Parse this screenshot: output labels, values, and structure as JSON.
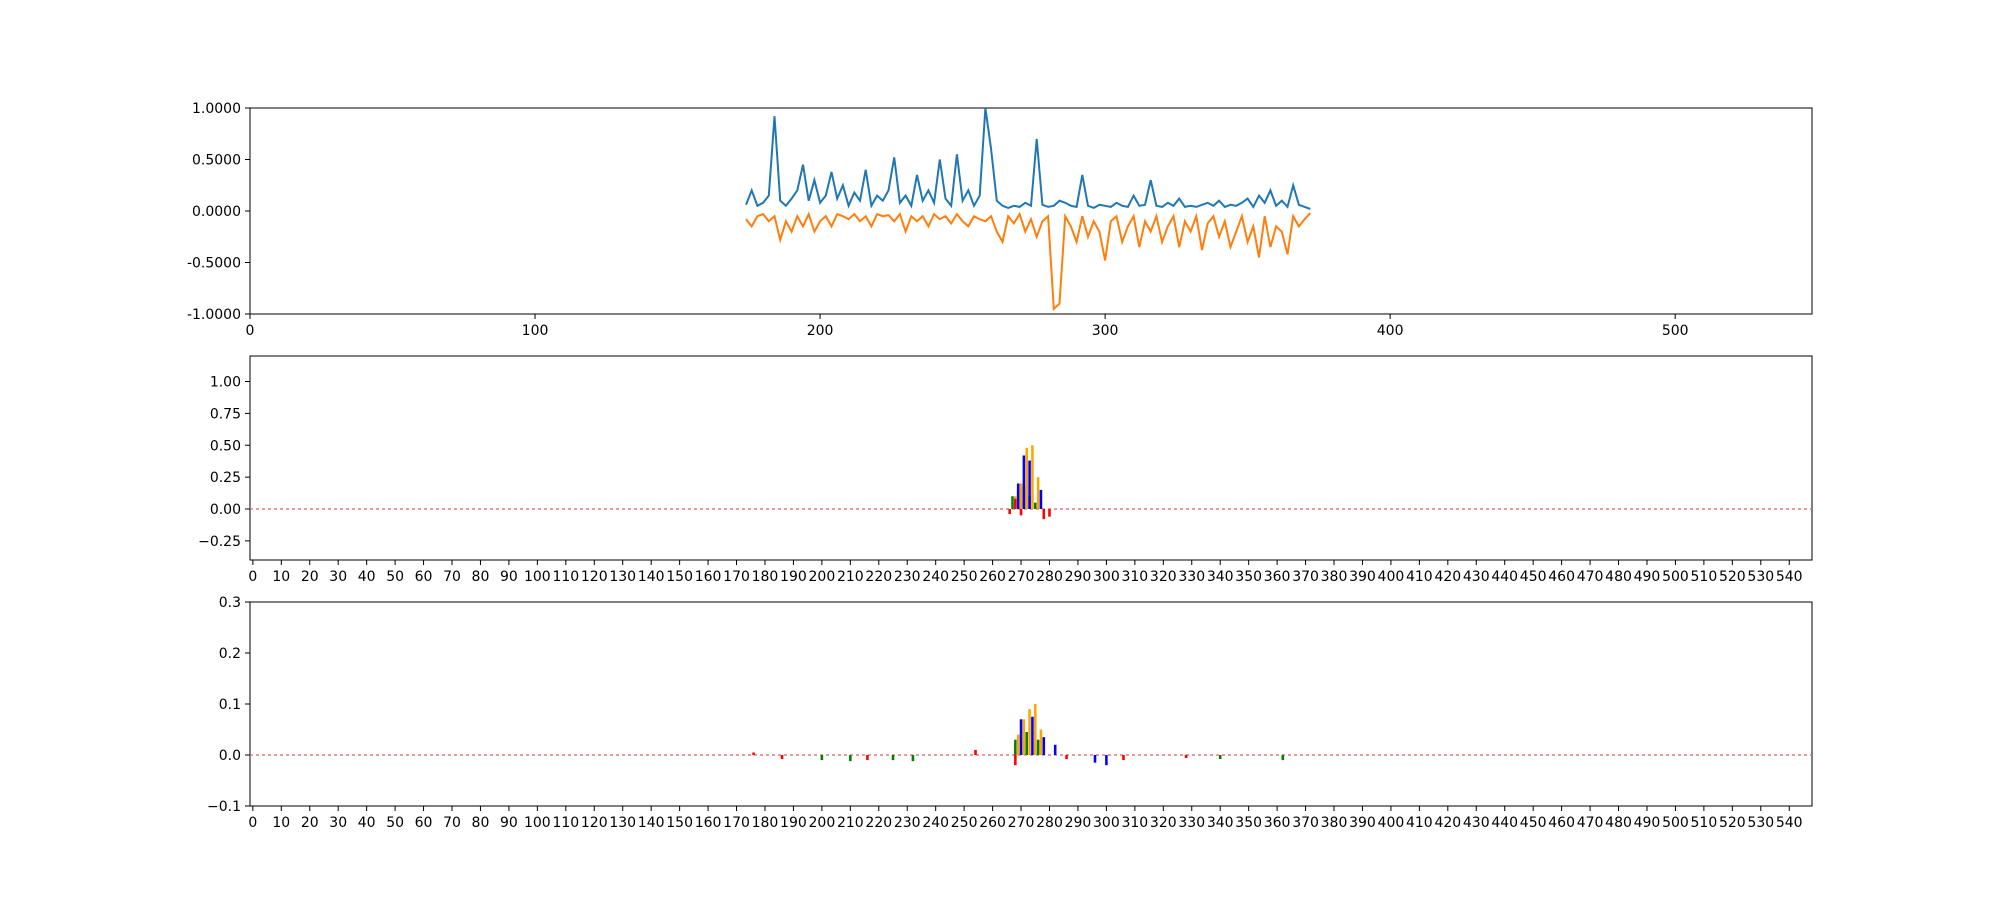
{
  "chart_data": [
    {
      "type": "line",
      "title": "",
      "xlabel": "",
      "ylabel": "",
      "xlim": [
        0,
        548
      ],
      "ylim": [
        -1.0,
        1.0
      ],
      "xticks": [
        0,
        100,
        200,
        300,
        400,
        500
      ],
      "yticks": [
        -1.0,
        -0.5,
        0.0,
        0.5,
        1.0
      ],
      "ytick_labels": [
        "-1.0000",
        "-0.5000",
        "0.0000",
        "0.5000",
        "1.0000"
      ],
      "grid": false,
      "series": [
        {
          "color": "#1f77b4",
          "x": [
            174,
            176,
            178,
            180,
            182,
            184,
            186,
            188,
            190,
            192,
            194,
            196,
            198,
            200,
            202,
            204,
            206,
            208,
            210,
            212,
            214,
            216,
            218,
            220,
            222,
            224,
            226,
            228,
            230,
            232,
            234,
            236,
            238,
            240,
            242,
            244,
            246,
            248,
            250,
            252,
            254,
            256,
            258,
            260,
            262,
            264,
            266,
            268,
            270,
            272,
            274,
            276,
            278,
            280,
            282,
            284,
            286,
            288,
            290,
            292,
            294,
            296,
            298,
            300,
            302,
            304,
            306,
            308,
            310,
            312,
            314,
            316,
            318,
            320,
            322,
            324,
            326,
            328,
            330,
            332,
            334,
            336,
            338,
            340,
            342,
            344,
            346,
            348,
            350,
            352,
            354,
            356,
            358,
            360,
            362,
            364,
            366,
            368,
            370,
            372
          ],
          "y": [
            0.06,
            0.2,
            0.05,
            0.08,
            0.15,
            0.92,
            0.1,
            0.05,
            0.12,
            0.2,
            0.45,
            0.1,
            0.3,
            0.08,
            0.15,
            0.38,
            0.12,
            0.25,
            0.05,
            0.18,
            0.1,
            0.4,
            0.05,
            0.15,
            0.1,
            0.2,
            0.52,
            0.08,
            0.15,
            0.05,
            0.35,
            0.1,
            0.2,
            0.08,
            0.5,
            0.12,
            0.05,
            0.55,
            0.1,
            0.2,
            0.05,
            0.15,
            1.0,
            0.6,
            0.1,
            0.05,
            0.03,
            0.05,
            0.04,
            0.08,
            0.05,
            0.7,
            0.06,
            0.04,
            0.05,
            0.1,
            0.08,
            0.05,
            0.04,
            0.35,
            0.05,
            0.03,
            0.06,
            0.05,
            0.04,
            0.08,
            0.05,
            0.04,
            0.15,
            0.05,
            0.06,
            0.3,
            0.05,
            0.04,
            0.08,
            0.05,
            0.12,
            0.04,
            0.05,
            0.04,
            0.06,
            0.08,
            0.05,
            0.1,
            0.04,
            0.06,
            0.05,
            0.08,
            0.12,
            0.04,
            0.15,
            0.08,
            0.2,
            0.05,
            0.1,
            0.04,
            0.25,
            0.06,
            0.04,
            0.02
          ]
        },
        {
          "color": "#ff7f0e",
          "x": [
            174,
            176,
            178,
            180,
            182,
            184,
            186,
            188,
            190,
            192,
            194,
            196,
            198,
            200,
            202,
            204,
            206,
            208,
            210,
            212,
            214,
            216,
            218,
            220,
            222,
            224,
            226,
            228,
            230,
            232,
            234,
            236,
            238,
            240,
            242,
            244,
            246,
            248,
            250,
            252,
            254,
            256,
            258,
            260,
            262,
            264,
            266,
            268,
            270,
            272,
            274,
            276,
            278,
            280,
            282,
            284,
            286,
            288,
            290,
            292,
            294,
            296,
            298,
            300,
            302,
            304,
            306,
            308,
            310,
            312,
            314,
            316,
            318,
            320,
            322,
            324,
            326,
            328,
            330,
            332,
            334,
            336,
            338,
            340,
            342,
            344,
            346,
            348,
            350,
            352,
            354,
            356,
            358,
            360,
            362,
            364,
            366,
            368,
            370,
            372
          ],
          "y": [
            -0.08,
            -0.15,
            -0.05,
            -0.03,
            -0.1,
            -0.05,
            -0.28,
            -0.1,
            -0.2,
            -0.05,
            -0.15,
            -0.03,
            -0.2,
            -0.1,
            -0.05,
            -0.15,
            -0.03,
            -0.05,
            -0.08,
            -0.03,
            -0.1,
            -0.05,
            -0.15,
            -0.03,
            -0.05,
            -0.04,
            -0.1,
            -0.03,
            -0.2,
            -0.05,
            -0.1,
            -0.05,
            -0.15,
            -0.03,
            -0.08,
            -0.05,
            -0.12,
            -0.03,
            -0.1,
            -0.15,
            -0.05,
            -0.08,
            -0.1,
            -0.05,
            -0.2,
            -0.3,
            -0.05,
            -0.12,
            -0.03,
            -0.2,
            -0.08,
            -0.25,
            -0.1,
            -0.05,
            -0.95,
            -0.9,
            -0.05,
            -0.15,
            -0.3,
            -0.05,
            -0.25,
            -0.1,
            -0.2,
            -0.48,
            -0.1,
            -0.05,
            -0.3,
            -0.15,
            -0.05,
            -0.35,
            -0.1,
            -0.2,
            -0.05,
            -0.3,
            -0.15,
            -0.05,
            -0.35,
            -0.1,
            -0.2,
            -0.05,
            -0.38,
            -0.12,
            -0.05,
            -0.25,
            -0.1,
            -0.35,
            -0.2,
            -0.05,
            -0.3,
            -0.15,
            -0.45,
            -0.05,
            -0.35,
            -0.15,
            -0.2,
            -0.42,
            -0.05,
            -0.15,
            -0.08,
            -0.02
          ]
        }
      ]
    },
    {
      "type": "bar",
      "title": "",
      "xlabel": "",
      "ylabel": "",
      "xlim": [
        -1,
        548
      ],
      "ylim": [
        -0.4,
        1.2
      ],
      "xticks": [
        0,
        10,
        20,
        30,
        40,
        50,
        60,
        70,
        80,
        90,
        100,
        110,
        120,
        130,
        140,
        150,
        160,
        170,
        180,
        190,
        200,
        210,
        220,
        230,
        240,
        250,
        260,
        270,
        280,
        290,
        300,
        310,
        320,
        330,
        340,
        350,
        360,
        370,
        380,
        390,
        400,
        410,
        420,
        430,
        440,
        450,
        460,
        470,
        480,
        490,
        500,
        510,
        520,
        530,
        540
      ],
      "yticks": [
        -0.25,
        0.0,
        0.25,
        0.5,
        0.75,
        1.0
      ],
      "ytick_labels": [
        "−0.25",
        "0.00",
        "0.25",
        "0.50",
        "0.75",
        "1.00"
      ],
      "grid": false,
      "series": [
        {
          "name": "",
          "color": "#008000",
          "x": [
            267,
            269,
            271,
            273,
            275
          ],
          "values": [
            0.1,
            0.15,
            0.18,
            0.1,
            0.05
          ]
        },
        {
          "name": "",
          "color": "#ffa500",
          "x": [
            268,
            270,
            272,
            274,
            276
          ],
          "values": [
            0.1,
            0.2,
            0.48,
            0.5,
            0.25
          ]
        },
        {
          "name": "",
          "color": "#0000ff",
          "x": [
            269,
            271,
            273,
            277
          ],
          "values": [
            0.2,
            0.42,
            0.38,
            0.15
          ]
        },
        {
          "name": "",
          "color": "#ff0000",
          "x": [
            266,
            268,
            270,
            278,
            280
          ],
          "values": [
            -0.04,
            0.08,
            -0.05,
            -0.08,
            -0.06
          ]
        }
      ]
    },
    {
      "type": "bar",
      "title": "",
      "xlabel": "",
      "ylabel": "",
      "xlim": [
        -1,
        548
      ],
      "ylim": [
        -0.1,
        0.3
      ],
      "xticks": [
        0,
        10,
        20,
        30,
        40,
        50,
        60,
        70,
        80,
        90,
        100,
        110,
        120,
        130,
        140,
        150,
        160,
        170,
        180,
        190,
        200,
        210,
        220,
        230,
        240,
        250,
        260,
        270,
        280,
        290,
        300,
        310,
        320,
        330,
        340,
        350,
        360,
        370,
        380,
        390,
        400,
        410,
        420,
        430,
        440,
        450,
        460,
        470,
        480,
        490,
        500,
        510,
        520,
        530,
        540
      ],
      "yticks": [
        -0.1,
        0.0,
        0.1,
        0.2,
        0.3
      ],
      "ytick_labels": [
        "−0.1",
        "0.0",
        "0.1",
        "0.2",
        "0.3"
      ],
      "grid": false,
      "series": [
        {
          "name": "",
          "color": "#008000",
          "x": [
            200,
            210,
            225,
            232,
            268,
            272,
            276,
            340,
            362
          ],
          "values": [
            -0.01,
            -0.012,
            -0.01,
            -0.012,
            0.03,
            0.045,
            0.03,
            -0.008,
            -0.01
          ]
        },
        {
          "name": "",
          "color": "#ffa500",
          "x": [
            269,
            271,
            273,
            275,
            277
          ],
          "values": [
            0.04,
            0.07,
            0.09,
            0.1,
            0.05
          ]
        },
        {
          "name": "",
          "color": "#0000ff",
          "x": [
            270,
            274,
            278,
            282,
            296,
            300
          ],
          "values": [
            0.07,
            0.075,
            0.035,
            0.02,
            -0.015,
            -0.02
          ]
        },
        {
          "name": "",
          "color": "#ff0000",
          "x": [
            176,
            186,
            216,
            254,
            268,
            286,
            306,
            328
          ],
          "values": [
            0.005,
            -0.008,
            -0.01,
            0.01,
            -0.02,
            -0.008,
            -0.01,
            -0.006
          ]
        }
      ]
    }
  ]
}
